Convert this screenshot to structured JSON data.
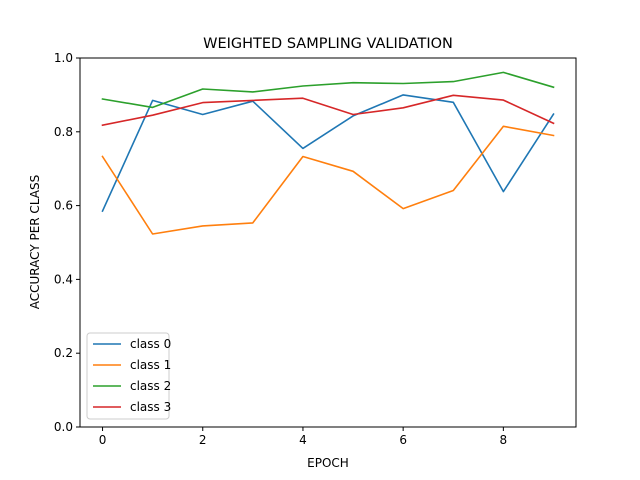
{
  "chart_data": {
    "type": "line",
    "title": "WEIGHTED SAMPLING VALIDATION",
    "xlabel": "EPOCH",
    "ylabel": "ACCURACY PER CLASS",
    "xlim": [
      -0.45,
      9.45
    ],
    "ylim": [
      0.0,
      1.0
    ],
    "x": [
      0,
      1,
      2,
      3,
      4,
      5,
      6,
      7,
      8,
      9
    ],
    "xticks": [
      "0",
      "2",
      "4",
      "6",
      "8"
    ],
    "yticks": [
      "0.0",
      "0.2",
      "0.4",
      "0.6",
      "0.8",
      "1.0"
    ],
    "grid": false,
    "legend_position": "lower-left",
    "series": [
      {
        "name": "class 0",
        "color": "#1f77b4",
        "values": [
          0.585,
          0.885,
          0.847,
          0.883,
          0.755,
          0.843,
          0.9,
          0.88,
          0.638,
          0.848
        ]
      },
      {
        "name": "class 1",
        "color": "#ff7f0e",
        "values": [
          0.733,
          0.523,
          0.545,
          0.553,
          0.733,
          0.693,
          0.592,
          0.641,
          0.815,
          0.79
        ]
      },
      {
        "name": "class 2",
        "color": "#2ca02c",
        "values": [
          0.889,
          0.866,
          0.916,
          0.908,
          0.924,
          0.933,
          0.931,
          0.936,
          0.961,
          0.921
        ]
      },
      {
        "name": "class 3",
        "color": "#d62728",
        "values": [
          0.818,
          0.845,
          0.879,
          0.885,
          0.891,
          0.847,
          0.865,
          0.899,
          0.886,
          0.823
        ]
      }
    ]
  }
}
